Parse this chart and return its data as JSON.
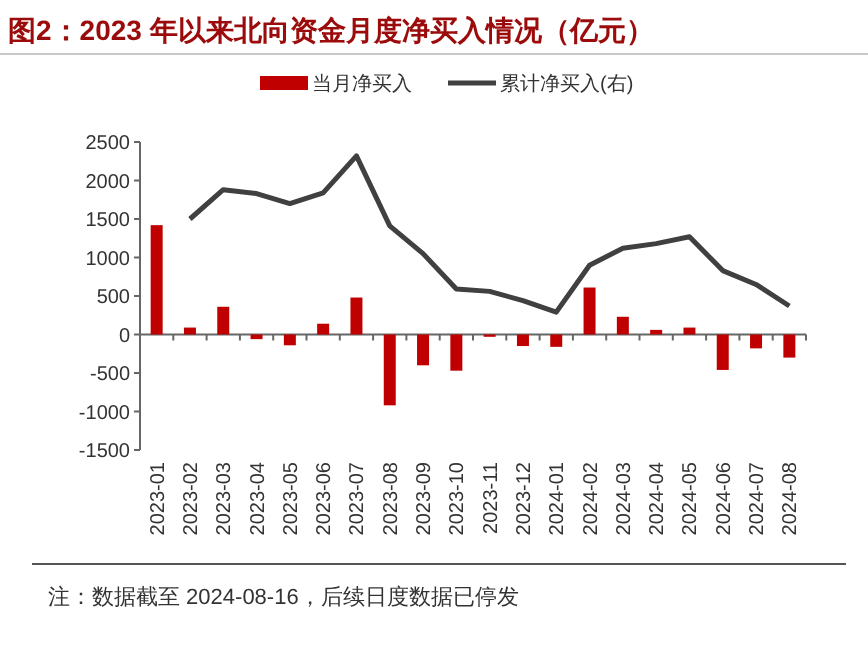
{
  "chart_data": {
    "type": "bar",
    "title": "图2：2023 年以来北向资金月度净买入情况（亿元）",
    "categories": [
      "2023-01",
      "2023-02",
      "2023-03",
      "2023-04",
      "2023-05",
      "2023-06",
      "2023-07",
      "2023-08",
      "2023-09",
      "2023-10",
      "2023-11",
      "2023-12",
      "2024-01",
      "2024-02",
      "2024-03",
      "2024-04",
      "2024-05",
      "2024-06",
      "2024-07",
      "2024-08"
    ],
    "series": [
      {
        "name": "当月净买入",
        "color": "#c00000",
        "values": [
          1420,
          90,
          360,
          -60,
          -140,
          140,
          480,
          -920,
          -400,
          -470,
          -30,
          -150,
          -160,
          610,
          230,
          60,
          90,
          -460,
          -180,
          -300
        ]
      },
      {
        "name": "累计净买入(右)",
        "type": "line",
        "color": "#404040",
        "values": [
          null,
          1500,
          1880,
          1830,
          1700,
          1840,
          2320,
          1410,
          1050,
          590,
          560,
          440,
          290,
          900,
          1120,
          1180,
          1270,
          830,
          650,
          370
        ]
      }
    ],
    "ylim": [
      -1500,
      2500
    ],
    "yticks": [
      -1500,
      -1000,
      -500,
      0,
      500,
      1000,
      1500,
      2000,
      2500
    ],
    "legend": "top",
    "annotations": [
      "注：数据截至 2024-08-16，后续日度数据已停发"
    ]
  }
}
